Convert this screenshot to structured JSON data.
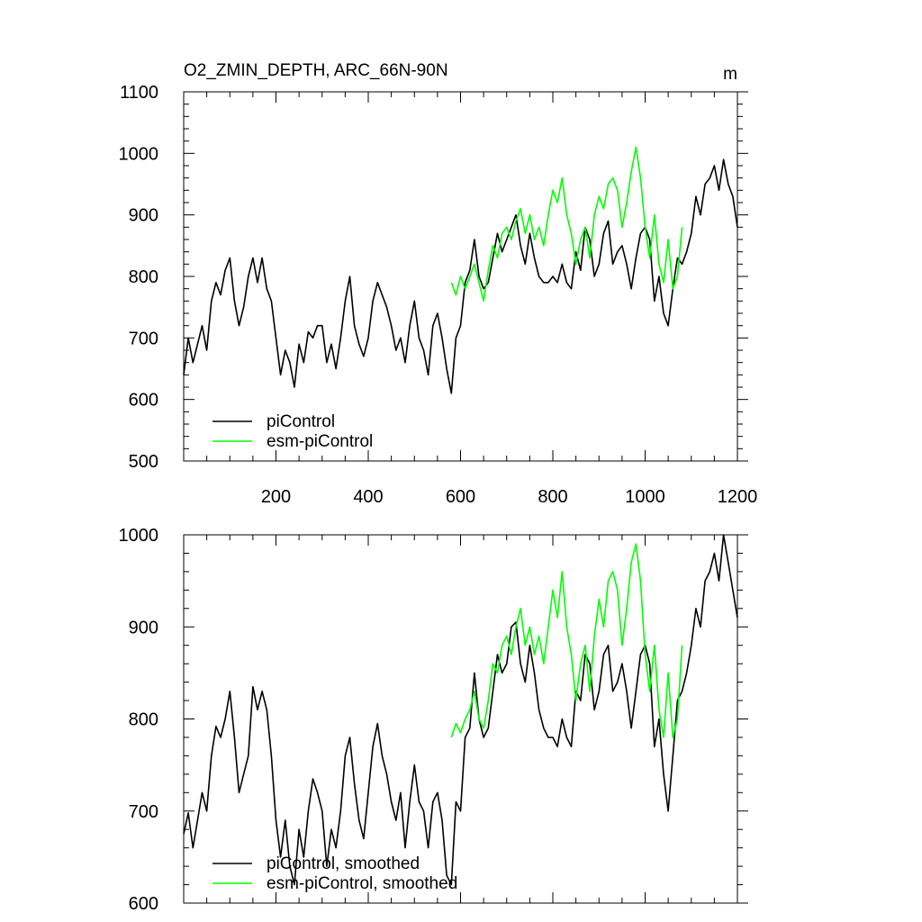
{
  "chart_data": [
    {
      "type": "line",
      "title": "O2_ZMIN_DEPTH, ARC_66N-90N",
      "units": "m",
      "xlim": [
        0,
        1200
      ],
      "ylim": [
        500,
        1100
      ],
      "x_ticks": [
        200,
        400,
        600,
        800,
        1000,
        1200
      ],
      "x_tick_labels": [
        "200",
        "400",
        "600",
        "800",
        "1000",
        "1200"
      ],
      "y_ticks": [
        500,
        600,
        700,
        800,
        900,
        1000,
        1100
      ],
      "y_tick_labels": [
        "500",
        "600",
        "700",
        "800",
        "900",
        "1000",
        "1100"
      ],
      "legend_position": "bottom-left",
      "series": [
        {
          "name": "piControl",
          "color": "#000000",
          "x": [
            0,
            10,
            20,
            30,
            40,
            50,
            60,
            70,
            80,
            90,
            100,
            110,
            120,
            130,
            140,
            150,
            160,
            170,
            180,
            190,
            200,
            210,
            220,
            230,
            240,
            250,
            260,
            270,
            280,
            290,
            300,
            310,
            320,
            330,
            340,
            350,
            360,
            370,
            380,
            390,
            400,
            410,
            420,
            430,
            440,
            450,
            460,
            470,
            480,
            490,
            500,
            510,
            520,
            530,
            540,
            550,
            560,
            570,
            580,
            590,
            600,
            610,
            620,
            630,
            640,
            650,
            660,
            670,
            680,
            690,
            700,
            710,
            720,
            730,
            740,
            750,
            760,
            770,
            780,
            790,
            800,
            810,
            820,
            830,
            840,
            850,
            860,
            870,
            880,
            890,
            900,
            910,
            920,
            930,
            940,
            950,
            960,
            970,
            980,
            990,
            1000,
            1010,
            1020,
            1030,
            1040,
            1050,
            1060,
            1070,
            1080,
            1090,
            1100,
            1110,
            1120,
            1130,
            1140,
            1150,
            1160,
            1170,
            1180,
            1190,
            1200
          ],
          "values": [
            640,
            700,
            660,
            690,
            720,
            680,
            760,
            790,
            770,
            810,
            830,
            760,
            720,
            750,
            800,
            830,
            790,
            830,
            780,
            760,
            700,
            640,
            680,
            660,
            620,
            690,
            660,
            710,
            700,
            720,
            720,
            660,
            690,
            650,
            700,
            760,
            800,
            720,
            690,
            670,
            700,
            760,
            790,
            770,
            750,
            720,
            680,
            700,
            660,
            720,
            760,
            700,
            680,
            640,
            720,
            740,
            700,
            650,
            610,
            700,
            720,
            790,
            810,
            860,
            800,
            780,
            790,
            830,
            870,
            840,
            860,
            880,
            900,
            850,
            820,
            870,
            830,
            800,
            790,
            790,
            800,
            790,
            820,
            790,
            780,
            840,
            810,
            880,
            860,
            800,
            820,
            870,
            890,
            820,
            840,
            850,
            820,
            780,
            830,
            870,
            880,
            860,
            760,
            800,
            740,
            720,
            780,
            830,
            820,
            840,
            870,
            930,
            900,
            950,
            960,
            980,
            940,
            990,
            950,
            930,
            880
          ]
        },
        {
          "name": "esm-piControl",
          "color": "#00ff00",
          "x": [
            580,
            590,
            600,
            610,
            620,
            630,
            640,
            650,
            660,
            670,
            680,
            690,
            700,
            710,
            720,
            730,
            740,
            750,
            760,
            770,
            780,
            790,
            800,
            810,
            820,
            830,
            840,
            850,
            860,
            870,
            880,
            890,
            900,
            910,
            920,
            930,
            940,
            950,
            960,
            970,
            980,
            990,
            1000,
            1010,
            1020,
            1030,
            1040,
            1050,
            1060,
            1070,
            1080
          ],
          "values": [
            790,
            770,
            800,
            780,
            800,
            820,
            790,
            760,
            810,
            850,
            830,
            870,
            880,
            860,
            890,
            910,
            870,
            900,
            860,
            880,
            850,
            900,
            940,
            920,
            960,
            900,
            870,
            820,
            860,
            880,
            830,
            900,
            930,
            910,
            950,
            960,
            940,
            880,
            920,
            970,
            1010,
            960,
            880,
            830,
            900,
            820,
            790,
            860,
            780,
            800,
            880
          ]
        }
      ]
    },
    {
      "type": "line",
      "title": "",
      "xlim": [
        0,
        1200
      ],
      "ylim": [
        600,
        1000
      ],
      "y_ticks": [
        600,
        700,
        800,
        900,
        1000
      ],
      "y_tick_labels": [
        "600",
        "700",
        "800",
        "900",
        "1000"
      ],
      "legend_position": "bottom-left",
      "series": [
        {
          "name": "piControl, smoothed",
          "color": "#000000",
          "x": [
            0,
            10,
            20,
            30,
            40,
            50,
            60,
            70,
            80,
            90,
            100,
            110,
            120,
            130,
            140,
            150,
            160,
            170,
            180,
            190,
            200,
            210,
            220,
            230,
            240,
            250,
            260,
            270,
            280,
            290,
            300,
            310,
            320,
            330,
            340,
            350,
            360,
            370,
            380,
            390,
            400,
            410,
            420,
            430,
            440,
            450,
            460,
            470,
            480,
            490,
            500,
            510,
            520,
            530,
            540,
            550,
            560,
            570,
            580,
            590,
            600,
            610,
            620,
            630,
            640,
            650,
            660,
            670,
            680,
            690,
            700,
            710,
            720,
            730,
            740,
            750,
            760,
            770,
            780,
            790,
            800,
            810,
            820,
            830,
            840,
            850,
            860,
            870,
            880,
            890,
            900,
            910,
            920,
            930,
            940,
            950,
            960,
            970,
            980,
            990,
            1000,
            1010,
            1020,
            1030,
            1040,
            1050,
            1060,
            1070,
            1080,
            1090,
            1100,
            1110,
            1120,
            1130,
            1140,
            1150,
            1160,
            1170,
            1180,
            1190,
            1200
          ],
          "values": [
            675,
            698,
            660,
            690,
            720,
            700,
            760,
            792,
            780,
            800,
            830,
            780,
            720,
            740,
            760,
            835,
            810,
            830,
            810,
            760,
            690,
            650,
            690,
            640,
            620,
            680,
            650,
            700,
            735,
            720,
            700,
            640,
            680,
            660,
            700,
            760,
            780,
            730,
            690,
            670,
            720,
            770,
            795,
            760,
            740,
            710,
            690,
            720,
            660,
            710,
            750,
            710,
            700,
            660,
            710,
            720,
            690,
            630,
            620,
            710,
            700,
            780,
            790,
            850,
            800,
            780,
            790,
            830,
            870,
            850,
            860,
            900,
            905,
            860,
            840,
            880,
            850,
            810,
            790,
            780,
            780,
            770,
            800,
            780,
            770,
            830,
            820,
            870,
            860,
            810,
            830,
            870,
            880,
            830,
            840,
            860,
            830,
            790,
            830,
            870,
            880,
            860,
            770,
            800,
            740,
            700,
            760,
            820,
            830,
            850,
            880,
            920,
            900,
            950,
            960,
            980,
            950,
            1000,
            970,
            940,
            910
          ]
        },
        {
          "name": "esm-piControl, smoothed",
          "color": "#00ff00",
          "x": [
            580,
            590,
            600,
            610,
            620,
            630,
            640,
            650,
            660,
            670,
            680,
            690,
            700,
            710,
            720,
            730,
            740,
            750,
            760,
            770,
            780,
            790,
            800,
            810,
            820,
            830,
            840,
            850,
            860,
            870,
            880,
            890,
            900,
            910,
            920,
            930,
            940,
            950,
            960,
            970,
            980,
            990,
            1000,
            1010,
            1020,
            1030,
            1040,
            1050,
            1060,
            1070,
            1080
          ],
          "values": [
            780,
            795,
            785,
            800,
            810,
            830,
            800,
            790,
            820,
            860,
            850,
            880,
            890,
            870,
            900,
            920,
            880,
            900,
            870,
            890,
            860,
            900,
            940,
            910,
            960,
            900,
            870,
            820,
            860,
            880,
            830,
            890,
            930,
            900,
            950,
            960,
            940,
            880,
            920,
            970,
            990,
            950,
            870,
            830,
            880,
            810,
            780,
            850,
            780,
            800,
            880
          ]
        }
      ]
    }
  ]
}
